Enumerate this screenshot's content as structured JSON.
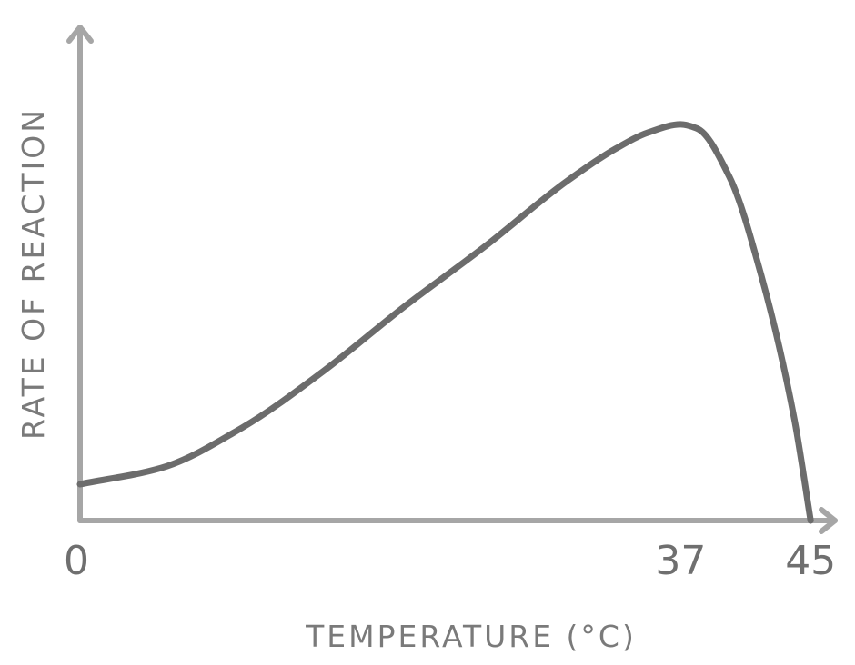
{
  "chart_data": {
    "type": "line",
    "title": "",
    "xlabel": "TEMPERATURE (°C)",
    "ylabel": "RATE OF REACTION",
    "x_ticks": [
      "0",
      "37",
      "45"
    ],
    "x_tick_values": [
      0,
      37,
      45
    ],
    "xlim": [
      0,
      46.5
    ],
    "ylim": [
      0,
      1.0
    ],
    "grid": false,
    "legend": "none",
    "colors": {
      "axis": "#a6a6a6",
      "curve": "#6c6c6c",
      "text": "#707070"
    },
    "series": [
      {
        "x": [
          0,
          5,
          10,
          15,
          20,
          25,
          30,
          33,
          35,
          37,
          38,
          40,
          42,
          44,
          45
        ],
        "values": [
          0.09,
          0.13,
          0.23,
          0.37,
          0.53,
          0.68,
          0.84,
          0.92,
          0.96,
          0.98,
          0.97,
          0.85,
          0.6,
          0.25,
          0.0
        ]
      }
    ]
  }
}
